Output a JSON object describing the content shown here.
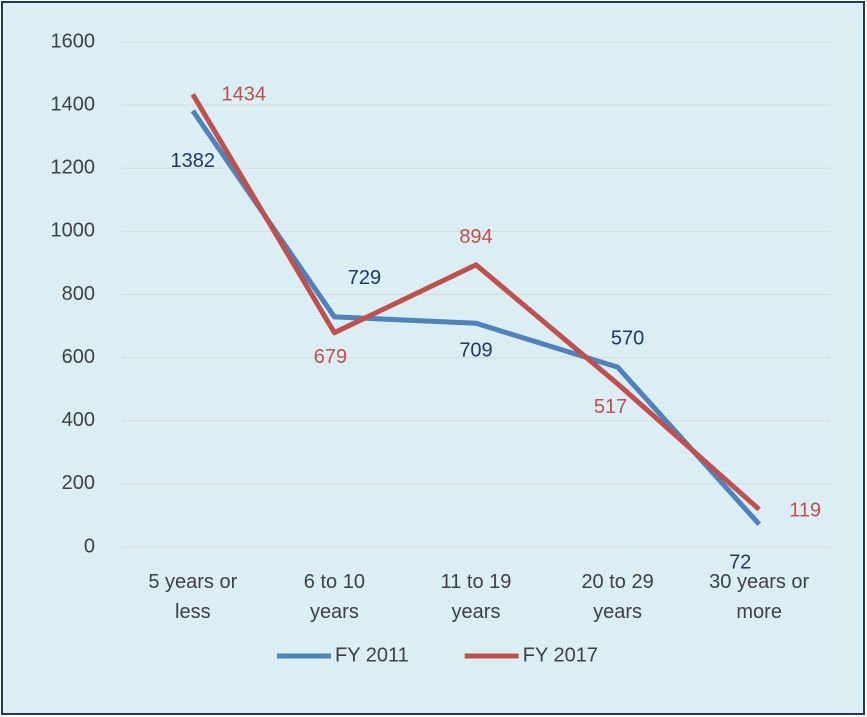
{
  "chart_data": {
    "type": "line",
    "categories": [
      "5 years or less",
      "6 to 10 years",
      "11 to 19 years",
      "20 to 29 years",
      "30 years or more"
    ],
    "series": [
      {
        "name": "FY 2011",
        "color": "#4f81bd",
        "label_color": "#1f3864",
        "values": [
          1382,
          729,
          709,
          570,
          72
        ]
      },
      {
        "name": "FY 2017",
        "color": "#c0504d",
        "label_color": "#c0504d",
        "values": [
          1434,
          679,
          894,
          517,
          119
        ]
      }
    ],
    "ylim": [
      0,
      1600
    ],
    "yticks": [
      0,
      200,
      400,
      600,
      800,
      1000,
      1200,
      1400,
      1600
    ],
    "grid": true,
    "legend": "bottom"
  }
}
